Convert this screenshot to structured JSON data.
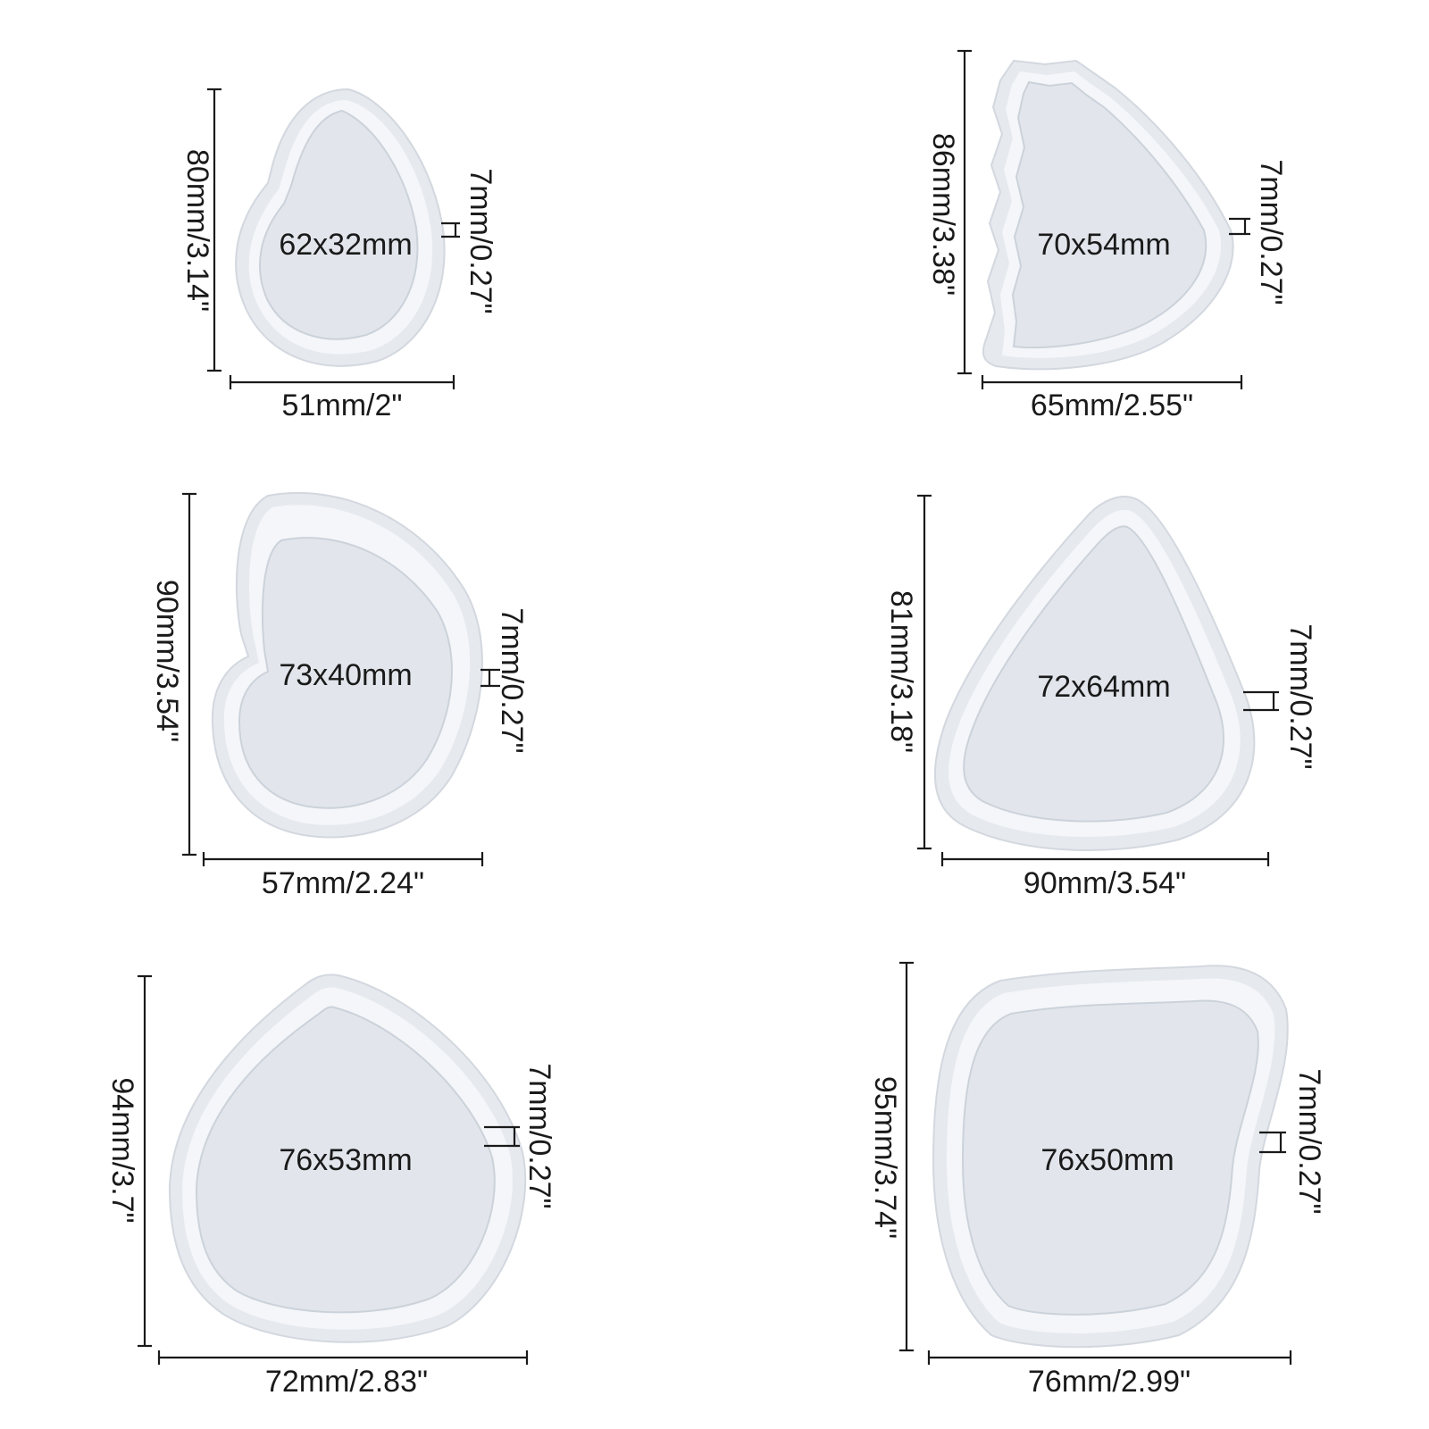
{
  "molds": [
    {
      "cavity": "62x32mm",
      "height": "80mm/3.14\"",
      "width": "51mm/2\"",
      "depth": "7mm/0.27\""
    },
    {
      "cavity": "70x54mm",
      "height": "86mm/3.38\"",
      "width": "65mm/2.55\"",
      "depth": "7mm/0.27\""
    },
    {
      "cavity": "73x40mm",
      "height": "90mm/3.54\"",
      "width": "57mm/2.24\"",
      "depth": "7mm/0.27\""
    },
    {
      "cavity": "72x64mm",
      "height": "81mm/3.18\"",
      "width": "90mm/3.54\"",
      "depth": "7mm/0.27\""
    },
    {
      "cavity": "76x53mm",
      "height": "94mm/3.7\"",
      "width": "72mm/2.83\"",
      "depth": "7mm/0.27\""
    },
    {
      "cavity": "76x50mm",
      "height": "95mm/3.74\"",
      "width": "76mm/2.99\"",
      "depth": "7mm/0.27\""
    }
  ]
}
